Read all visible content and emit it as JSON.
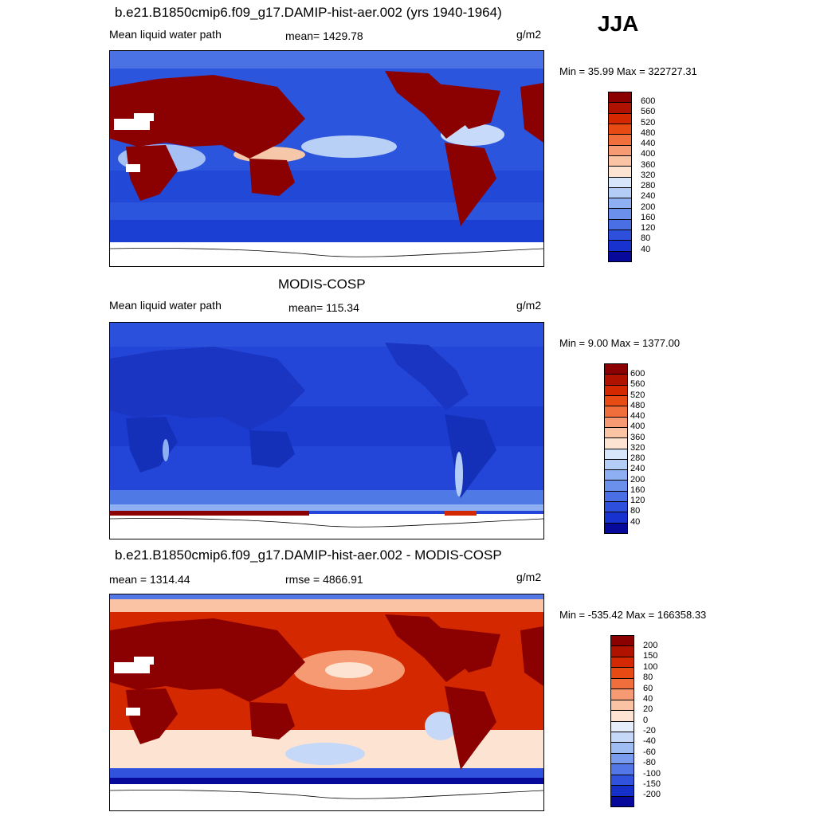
{
  "season": "JJA",
  "panels": [
    {
      "title": "b.e21.B1850cmip6.f09_g17.DAMIP-hist-aer.002 (yrs 1940-1964)",
      "left_label": "Mean liquid water path",
      "center_label": "mean= 1429.78",
      "units": "g/m2",
      "minmax": "Min =  35.99 Max = 322727.31",
      "scheme": "abs"
    },
    {
      "title": "MODIS-COSP",
      "left_label": "Mean liquid water path",
      "center_label": "mean= 115.34",
      "units": "g/m2",
      "minmax": "Min =   9.00 Max = 1377.00",
      "scheme": "obs"
    },
    {
      "title": "b.e21.B1850cmip6.f09_g17.DAMIP-hist-aer.002 - MODIS-COSP",
      "left_label": "mean = 1314.44",
      "center_label": "rmse = 4866.91",
      "units": "g/m2",
      "minmax": "Min = -535.42 Max = 166358.33",
      "scheme": "diff"
    }
  ],
  "colorbar_abs": {
    "labels": [
      "600",
      "560",
      "520",
      "480",
      "440",
      "400",
      "360",
      "320",
      "280",
      "240",
      "200",
      "160",
      "120",
      "80",
      "40"
    ],
    "colors": [
      "#8b0000",
      "#b01200",
      "#d42800",
      "#e84a14",
      "#f06e3c",
      "#f59a72",
      "#f9c3a4",
      "#fde4d2",
      "#d8e6fb",
      "#b4cdf7",
      "#8eb0f2",
      "#6a90ec",
      "#4a6fe4",
      "#2d4fdc",
      "#1832d0",
      "#07099a"
    ]
  },
  "colorbar_diff": {
    "labels": [
      "200",
      "150",
      "100",
      "80",
      "60",
      "40",
      "20",
      "0",
      "-20",
      "-40",
      "-60",
      "-80",
      "-100",
      "-150",
      "-200"
    ],
    "colors": [
      "#8b0000",
      "#b01200",
      "#d42800",
      "#e84a14",
      "#f06e3c",
      "#f59a72",
      "#f9c3a4",
      "#fde4d2",
      "#e6eefc",
      "#c6d8f8",
      "#9fbcf3",
      "#7a9cee",
      "#5377e6",
      "#3052dc",
      "#1430c8",
      "#07099a"
    ]
  }
}
